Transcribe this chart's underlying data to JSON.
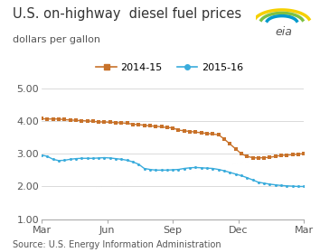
{
  "title": "U.S. on-highway  diesel fuel prices",
  "subtitle": "dollars per gallon",
  "source": "Source: U.S. Energy Information Administration",
  "ylim": [
    1.0,
    5.0
  ],
  "yticks": [
    1.0,
    2.0,
    3.0,
    4.0,
    5.0
  ],
  "xtick_labels": [
    "Mar",
    "Jun",
    "Sep",
    "Dec",
    "Mar"
  ],
  "legend_labels": [
    "2014-15",
    "2015-16"
  ],
  "color_2014": "#C8722A",
  "color_2015": "#3AACDC",
  "series_2014": [
    4.07,
    4.06,
    4.06,
    4.06,
    4.04,
    4.03,
    4.02,
    4.01,
    4.0,
    3.99,
    3.97,
    3.97,
    3.96,
    3.95,
    3.94,
    3.93,
    3.9,
    3.89,
    3.87,
    3.85,
    3.84,
    3.82,
    3.8,
    3.79,
    3.72,
    3.7,
    3.68,
    3.66,
    3.64,
    3.62,
    3.6,
    3.58,
    3.45,
    3.3,
    3.15,
    3.0,
    2.92,
    2.88,
    2.87,
    2.88,
    2.89,
    2.92,
    2.95,
    2.96,
    2.97,
    2.99,
    3.0
  ],
  "series_2015": [
    2.96,
    2.92,
    2.83,
    2.79,
    2.8,
    2.83,
    2.85,
    2.86,
    2.86,
    2.86,
    2.87,
    2.88,
    2.87,
    2.85,
    2.83,
    2.8,
    2.75,
    2.68,
    2.55,
    2.52,
    2.5,
    2.5,
    2.5,
    2.51,
    2.52,
    2.55,
    2.57,
    2.58,
    2.57,
    2.56,
    2.55,
    2.52,
    2.48,
    2.43,
    2.38,
    2.33,
    2.27,
    2.2,
    2.13,
    2.1,
    2.07,
    2.05,
    2.03,
    2.02,
    2.01,
    2.0,
    2.0
  ],
  "background_color": "#FFFFFF",
  "grid_color": "#CCCCCC",
  "title_fontsize": 10.5,
  "subtitle_fontsize": 8,
  "source_fontsize": 7,
  "tick_fontsize": 8,
  "legend_fontsize": 8
}
